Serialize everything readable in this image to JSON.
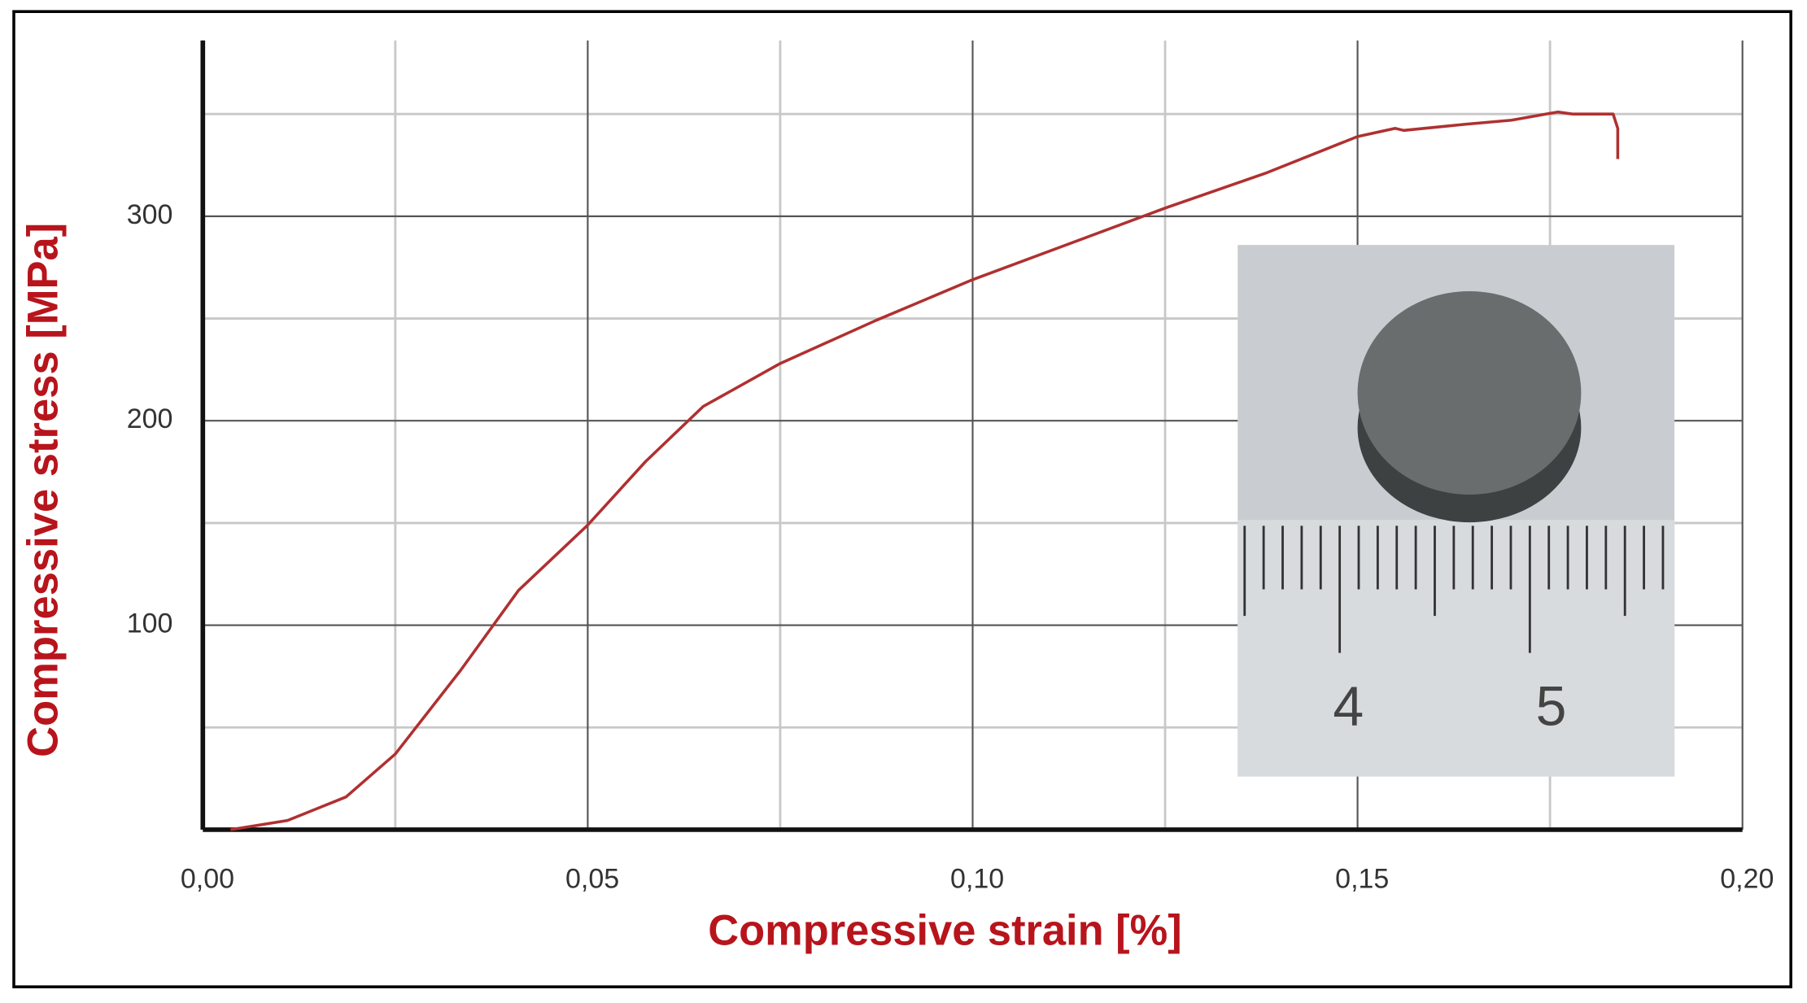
{
  "chart_data": {
    "type": "line",
    "xlabel": "Compressive strain [%]",
    "ylabel": "Compressive stress [MPa]",
    "x": [
      0.0036,
      0.011,
      0.0186,
      0.025,
      0.0335,
      0.041,
      0.05,
      0.0575,
      0.065,
      0.075,
      0.0874,
      0.1,
      0.125,
      0.138,
      0.15,
      0.1549,
      0.156,
      0.164,
      0.17,
      0.176,
      0.178,
      0.1832,
      0.1838,
      0.1838
    ],
    "series": [
      {
        "name": "Compressive stress",
        "color": "#b03030",
        "values": [
          0,
          4.5,
          16,
          37,
          78,
          117,
          149,
          180,
          207,
          228,
          249,
          269,
          304,
          321,
          339,
          343,
          342,
          345,
          347,
          351,
          350,
          350,
          343,
          328
        ]
      }
    ],
    "xlim": [
      0,
      0.2
    ],
    "ylim": [
      0,
      386
    ],
    "xticks": [
      {
        "value": 0,
        "label": "0,00"
      },
      {
        "value": 0.05,
        "label": "0,05"
      },
      {
        "value": 0.1,
        "label": "0,10"
      },
      {
        "value": 0.15,
        "label": "0,15"
      },
      {
        "value": 0.2,
        "label": "0,20"
      }
    ],
    "yticks": [
      100,
      200,
      300
    ],
    "xgrid": [
      0.025,
      0.075,
      0.125,
      0.175
    ],
    "ygrid": [
      50,
      150,
      250,
      350
    ],
    "grid": true,
    "inset_scale_labels": [
      "4",
      "5"
    ]
  }
}
